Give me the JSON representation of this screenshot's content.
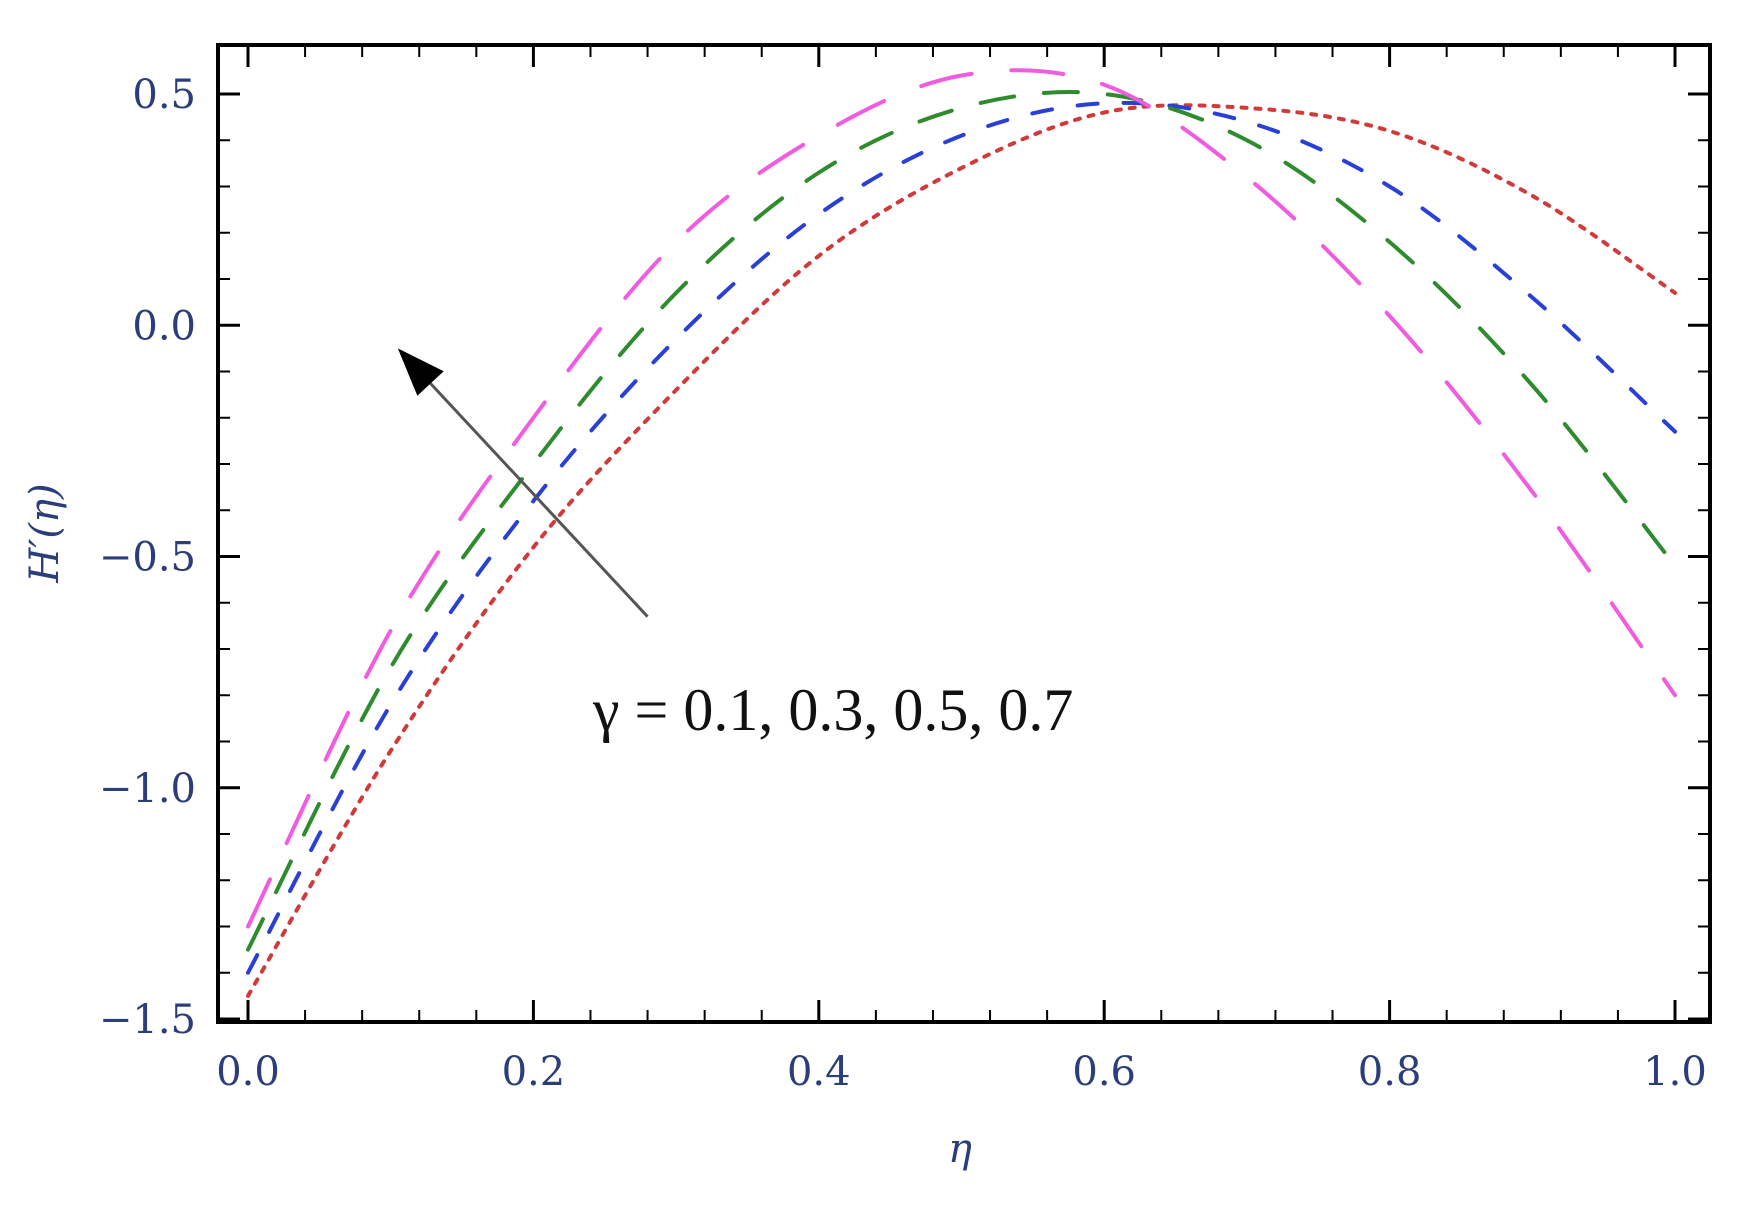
{
  "chart_data": {
    "type": "line",
    "title": "",
    "xlabel": "η",
    "ylabel": "H′(η)",
    "xlim": [
      0.0,
      1.0
    ],
    "ylim": [
      -1.5,
      0.6
    ],
    "xticks": [
      0.0,
      0.2,
      0.4,
      0.6,
      0.8,
      1.0
    ],
    "xtick_labels": [
      "0.0",
      "0.2",
      "0.4",
      "0.6",
      "0.8",
      "1.0"
    ],
    "yticks": [
      -1.5,
      -1.0,
      -0.5,
      0.0,
      0.5
    ],
    "ytick_labels": [
      "−1.5",
      "−1.0",
      "−0.5",
      "0.0",
      "0.5"
    ],
    "grid": false,
    "x": [
      0.0,
      0.1,
      0.2,
      0.3,
      0.4,
      0.5,
      0.6,
      0.7,
      0.8,
      0.9,
      1.0
    ],
    "series": [
      {
        "color": "#d03a3a",
        "dash": "dotted",
        "values": [
          -1.45,
          -0.92,
          -0.48,
          -0.14,
          0.15,
          0.34,
          0.46,
          0.47,
          0.42,
          0.28,
          0.07
        ]
      },
      {
        "color": "#2a3fd6",
        "dash": "short",
        "values": [
          -1.4,
          -0.82,
          -0.38,
          -0.03,
          0.24,
          0.41,
          0.48,
          0.44,
          0.3,
          0.06,
          -0.23
        ]
      },
      {
        "color": "#2e8b2e",
        "dash": "medium",
        "values": [
          -1.35,
          -0.74,
          -0.3,
          0.07,
          0.33,
          0.47,
          0.5,
          0.4,
          0.18,
          -0.13,
          -0.52
        ]
      },
      {
        "color": "#f05be0",
        "dash": "long",
        "values": [
          -1.3,
          -0.66,
          -0.2,
          0.18,
          0.41,
          0.54,
          0.52,
          0.32,
          0.02,
          -0.36,
          -0.8
        ]
      }
    ],
    "annotation": {
      "text": "γ = 0.1, 0.3, 0.5, 0.7",
      "arrow_from": [
        0.28,
        -0.63
      ],
      "arrow_to": [
        0.105,
        -0.05
      ]
    }
  },
  "colors": {
    "axis": "#000000",
    "tick_text": "#2c3e7a",
    "arrow": "#555555"
  }
}
